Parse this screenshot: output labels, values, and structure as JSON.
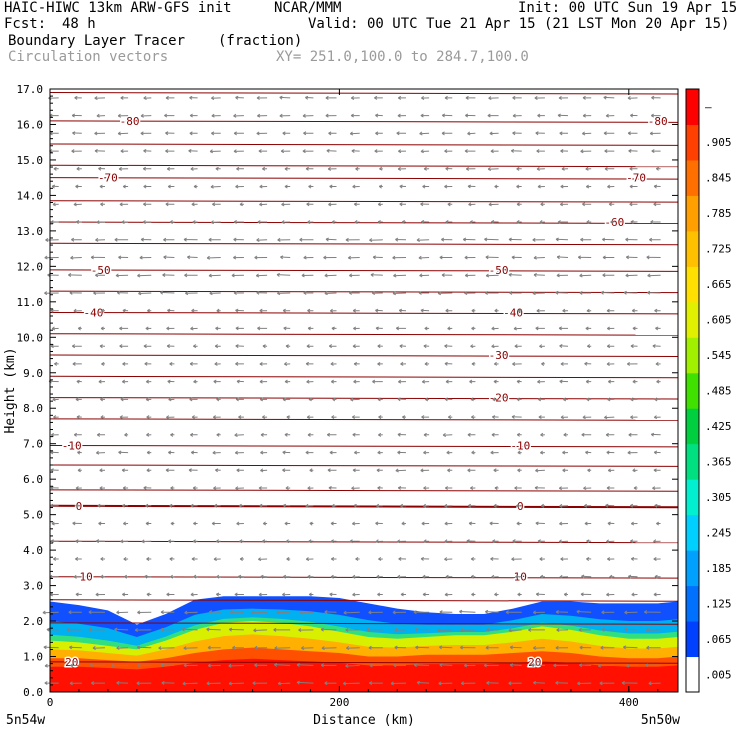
{
  "header": {
    "model": "HAIC-HIWC 13km ARW-GFS init",
    "org": "NCAR/MMM",
    "init": "Init: 00 UTC Sun 19 Apr 15",
    "fcst_label": "Fcst:",
    "fcst_value": "48 h",
    "valid": "Valid: 00 UTC Tue 21 Apr 15 (21 LST Mon 20 Apr 15)",
    "field_name": "Boundary Layer Tracer",
    "field_units": "(fraction)",
    "vector_label": "Circulation vectors",
    "xy_range": "XY= 251.0,100.0 to 284.7,100.0"
  },
  "chart_data": {
    "type": "heatmap",
    "title": "Boundary Layer Tracer",
    "units": "fraction",
    "xlabel": "Distance (km)",
    "ylabel": "Height (km)",
    "xlim": [
      0,
      434
    ],
    "ylim": [
      0,
      17
    ],
    "x_ticks": [
      0,
      200,
      400
    ],
    "y_ticks": [
      "0.0",
      "1.0",
      "2.0",
      "3.0",
      "4.0",
      "5.0",
      "6.0",
      "7.0",
      "8.0",
      "9.0",
      "10.0",
      "11.0",
      "12.0",
      "13.0",
      "14.0",
      "15.0",
      "16.0",
      "17.0"
    ],
    "endpoint_labels": {
      "left": "5n54w",
      "right": "5n50w"
    },
    "colorbar": {
      "labels": [
        ".005",
        ".065",
        ".125",
        ".185",
        ".245",
        ".305",
        ".365",
        ".425",
        ".485",
        ".545",
        ".605",
        ".665",
        ".725",
        ".785",
        ".845",
        ".905",
        "–"
      ],
      "colors": [
        "#ffffff",
        "#0040ff",
        "#0070ff",
        "#00a0ff",
        "#00d0ff",
        "#00f0d0",
        "#00e080",
        "#00d040",
        "#40e000",
        "#a0f000",
        "#e0f000",
        "#ffe000",
        "#ffc000",
        "#ffa000",
        "#ff7000",
        "#ff4000",
        "#ff0000"
      ]
    },
    "tracer_profile": {
      "x_km": [
        0,
        20,
        40,
        60,
        80,
        100,
        120,
        140,
        160,
        180,
        200,
        220,
        240,
        260,
        280,
        300,
        320,
        340,
        360,
        380,
        400,
        420,
        434
      ],
      "top_km": [
        2.55,
        2.45,
        2.3,
        1.9,
        2.2,
        2.6,
        2.7,
        2.7,
        2.7,
        2.7,
        2.65,
        2.5,
        2.35,
        2.25,
        2.2,
        2.2,
        2.35,
        2.55,
        2.55,
        2.5,
        2.5,
        2.5,
        2.55
      ],
      "tracer_060_km": [
        1.45,
        1.4,
        1.3,
        1.2,
        1.45,
        1.75,
        1.95,
        2.0,
        1.95,
        1.85,
        1.7,
        1.55,
        1.5,
        1.55,
        1.6,
        1.6,
        1.7,
        1.85,
        1.75,
        1.6,
        1.5,
        1.5,
        1.55
      ],
      "tracer_090_km": [
        0.95,
        0.95,
        0.9,
        0.85,
        0.95,
        1.1,
        1.2,
        1.25,
        1.2,
        1.15,
        1.1,
        1.0,
        1.0,
        1.05,
        1.05,
        1.05,
        1.1,
        1.15,
        1.1,
        1.0,
        0.95,
        0.95,
        1.0
      ]
    },
    "temperature_contours": {
      "units": "°C",
      "levels": [
        {
          "value": "-80",
          "y_km": 16.1,
          "labels_x_km": [
            55,
            420
          ]
        },
        {
          "value": "-70",
          "y_km": 14.5,
          "labels_x_km": [
            40,
            405
          ]
        },
        {
          "value": "-60",
          "y_km": 13.25,
          "labels_x_km": [
            390
          ]
        },
        {
          "value": "-50",
          "y_km": 11.9,
          "labels_x_km": [
            35,
            310
          ]
        },
        {
          "value": "-40",
          "y_km": 10.7,
          "labels_x_km": [
            30,
            320
          ]
        },
        {
          "value": "-30",
          "y_km": 9.5,
          "labels_x_km": [
            310
          ]
        },
        {
          "value": "-20",
          "y_km": 8.3,
          "labels_x_km": [
            310
          ]
        },
        {
          "value": "-10",
          "y_km": 6.95,
          "labels_x_km": [
            15,
            325
          ]
        },
        {
          "value": "0",
          "y_km": 5.25,
          "labels_x_km": [
            20,
            325
          ]
        },
        {
          "value": "10",
          "y_km": 3.25,
          "labels_x_km": [
            25,
            325
          ]
        },
        {
          "value": "20",
          "y_km": 0.85,
          "labels_x_km": [
            15,
            335
          ]
        }
      ],
      "extra_unlabeled_y_km": [
        16.9,
        15.45,
        14.85,
        13.85,
        12.65,
        11.3,
        10.1,
        8.9,
        7.7,
        6.4,
        5.7,
        4.25,
        2.6,
        1.95
      ]
    },
    "vectors": {
      "label": "Circulation vectors",
      "x_spacing_km": 16,
      "z_spacing_km": 0.5,
      "dominant_direction": "easterly (leftward)"
    }
  }
}
